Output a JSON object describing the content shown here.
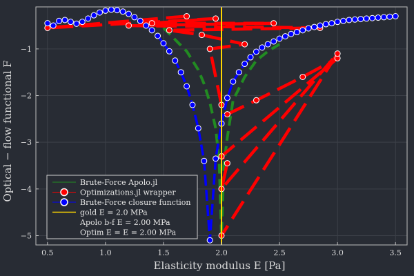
{
  "chart_data": {
    "type": "line",
    "title": "",
    "xlabel": "Elasticity modulus E [Pa]",
    "ylabel": "Optical − flow functional F",
    "xlim": [
      0.4,
      3.6
    ],
    "ylim": [
      -5.2,
      -0.1
    ],
    "x_ticks": [
      0.5,
      1.0,
      1.5,
      2.0,
      2.5,
      3.0,
      3.5
    ],
    "x_tick_labels": [
      "0.5",
      "1.0",
      "1.5",
      "2.0",
      "2.5",
      "3.0",
      "3.5"
    ],
    "y_ticks": [
      -1,
      -2,
      -3,
      -4,
      -5
    ],
    "y_tick_labels": [
      "−1",
      "−2",
      "−3",
      "−4",
      "−5"
    ],
    "grid": true,
    "legend_position": "bottom-left",
    "colors": {
      "background": "#282c34",
      "grid": "#3c4048",
      "axis": "#bfbfbf",
      "green": "#228b22",
      "red": "#ff0000",
      "blue": "#0000ff",
      "gold": "#ffd700"
    },
    "series": [
      {
        "name": "Brute-Force Apolo.jl",
        "style": "dashed-line",
        "color": "#228b22",
        "x": [
          1.5,
          1.6,
          1.7,
          1.8,
          1.85,
          1.9,
          1.95,
          1.98,
          2.0,
          2.02,
          2.05,
          2.1,
          2.2,
          2.3,
          2.4,
          2.5
        ],
        "y": [
          -0.55,
          -0.8,
          -1.05,
          -1.45,
          -1.75,
          -2.15,
          -2.7,
          -3.4,
          -5.0,
          -3.5,
          -2.9,
          -2.1,
          -1.6,
          -1.25,
          -1.05,
          -0.9
        ]
      },
      {
        "name": "Optimizations.jl wrapper",
        "style": "dashed-line-markers",
        "color": "#ff0000",
        "x": [
          1.7,
          0.5,
          1.95,
          1.4,
          2.45,
          1.2,
          2.85,
          1.55,
          1.83,
          2.2,
          1.9,
          2.0,
          2.05,
          2.3,
          2.7,
          3.0,
          2.0,
          2.05,
          2.0,
          3.0,
          2.0
        ],
        "y": [
          -0.3,
          -0.55,
          -0.35,
          -0.45,
          -0.45,
          -0.5,
          -0.55,
          -0.6,
          -0.7,
          -0.9,
          -1.0,
          -2.2,
          -2.4,
          -2.1,
          -1.6,
          -1.2,
          -3.3,
          -3.45,
          -4.0,
          -1.1,
          -5.0
        ]
      },
      {
        "name": "Brute-Force closure function",
        "style": "dashed-line-markers",
        "color": "#0000ff",
        "x": [
          0.5,
          0.55,
          0.6,
          0.65,
          0.7,
          0.75,
          0.8,
          0.85,
          0.9,
          0.95,
          1.0,
          1.05,
          1.1,
          1.15,
          1.2,
          1.25,
          1.3,
          1.35,
          1.4,
          1.45,
          1.5,
          1.55,
          1.6,
          1.65,
          1.7,
          1.75,
          1.8,
          1.85,
          1.9,
          1.95,
          2.0,
          2.05,
          2.1,
          2.15,
          2.2,
          2.25,
          2.3,
          2.35,
          2.4,
          2.45,
          2.5,
          2.55,
          2.6,
          2.65,
          2.7,
          2.75,
          2.8,
          2.85,
          2.9,
          2.95,
          3.0,
          3.05,
          3.1,
          3.15,
          3.2,
          3.25,
          3.3,
          3.35,
          3.4,
          3.45,
          3.5
        ],
        "y": [
          -0.45,
          -0.5,
          -0.4,
          -0.38,
          -0.42,
          -0.46,
          -0.42,
          -0.35,
          -0.28,
          -0.22,
          -0.18,
          -0.16,
          -0.17,
          -0.2,
          -0.25,
          -0.32,
          -0.4,
          -0.5,
          -0.6,
          -0.72,
          -0.88,
          -1.05,
          -1.25,
          -1.5,
          -1.8,
          -2.2,
          -2.7,
          -3.4,
          -5.1,
          -3.35,
          -2.6,
          -2.05,
          -1.7,
          -1.5,
          -1.32,
          -1.18,
          -1.06,
          -0.97,
          -0.9,
          -0.84,
          -0.78,
          -0.73,
          -0.68,
          -0.64,
          -0.6,
          -0.56,
          -0.53,
          -0.5,
          -0.47,
          -0.45,
          -0.42,
          -0.4,
          -0.38,
          -0.37,
          -0.36,
          -0.35,
          -0.34,
          -0.33,
          -0.32,
          -0.31,
          -0.3
        ]
      },
      {
        "name": "gold E = 2.0 MPa",
        "style": "vline",
        "color": "#ffd700",
        "x": [
          2.0
        ]
      }
    ],
    "legend_entries": [
      "Brute-Force Apolo.jl",
      "Optimizations.jl wrapper",
      "Brute-Force closure function",
      "gold E = 2.0 MPa",
      "Apolo b-f E = 2.00 MPa",
      "Optim E = E = 2.00 MPa"
    ]
  }
}
